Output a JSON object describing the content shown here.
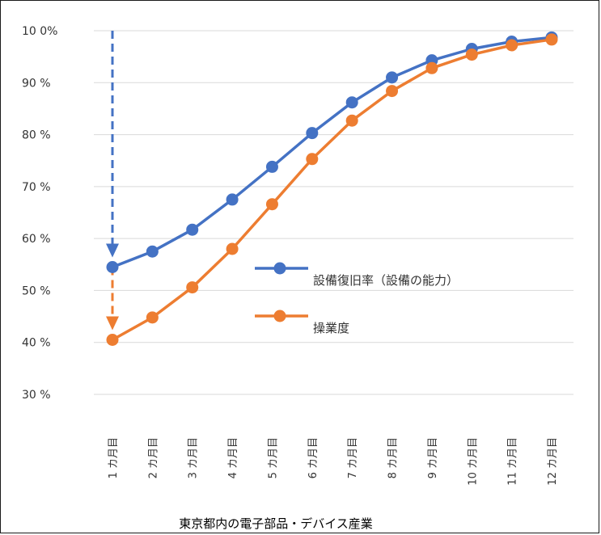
{
  "chart_data": {
    "type": "line",
    "title": "",
    "xlabel": "",
    "ylabel": "",
    "caption": "東京都内の電子部品・デバイス産業",
    "categories": [
      "1 カ月目",
      "2 カ月目",
      "3 カ月目",
      "4 カ月目",
      "5 カ月目",
      "6 カ月目",
      "7 カ月目",
      "8 カ月目",
      "9 カ月目",
      "10 カ月目",
      "11 カ月目",
      "12 カ月目"
    ],
    "y_tick_labels": [
      "30 %",
      "40 %",
      "50 %",
      "60 %",
      "70 %",
      "80 %",
      "90 %",
      "10 0%"
    ],
    "y_tick_values": [
      30,
      40,
      50,
      60,
      70,
      80,
      90,
      100
    ],
    "ylim": [
      30,
      100
    ],
    "grid": true,
    "legend_position": "center-right",
    "series": [
      {
        "name": "設備復旧率（設備の能力）",
        "color": "#4472C4",
        "values": [
          54.5,
          57.5,
          61.7,
          67.5,
          73.8,
          80.3,
          86.2,
          91.0,
          94.3,
          96.5,
          97.9,
          98.7
        ]
      },
      {
        "name": "操業度",
        "color": "#ED7D31",
        "values": [
          40.5,
          44.8,
          50.6,
          58.0,
          66.6,
          75.3,
          82.7,
          88.4,
          92.8,
          95.4,
          97.2,
          98.3
        ]
      }
    ],
    "annotations": [
      {
        "type": "dashed-arrow",
        "color": "#4472C4",
        "from_y": 100,
        "to_y": 54.5,
        "at_category": 0
      },
      {
        "type": "dashed-arrow",
        "color": "#ED7D31",
        "from_y": 54.5,
        "to_y": 40.5,
        "at_category": 0
      }
    ]
  }
}
